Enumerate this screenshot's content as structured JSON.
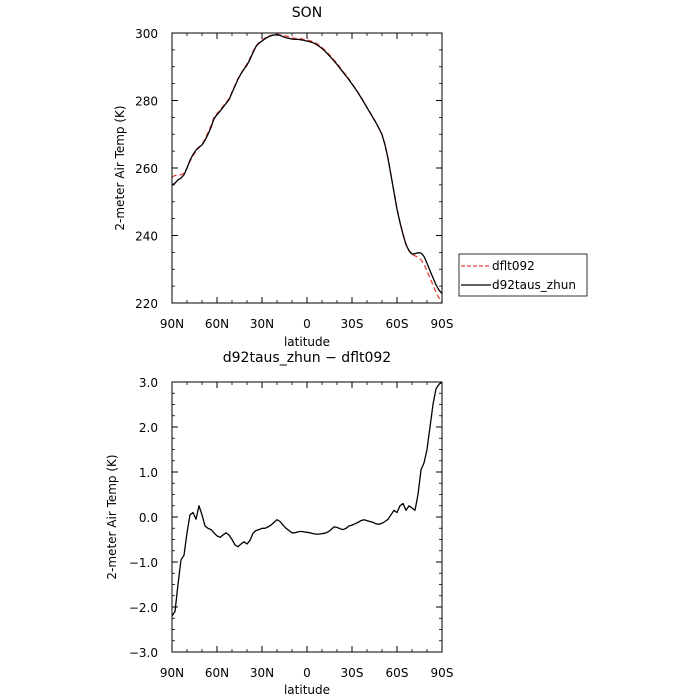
{
  "chart_data": [
    {
      "type": "line",
      "title": "SON",
      "xlabel": "latitude",
      "ylabel": "2-meter Air Temp (K)",
      "xlim": [
        90,
        -90
      ],
      "ylim": [
        220,
        300
      ],
      "x_ticks": [
        90,
        60,
        30,
        0,
        -30,
        -60,
        -90
      ],
      "x_tick_labels": [
        "90N",
        "60N",
        "30N",
        "0",
        "30S",
        "60S",
        "90S"
      ],
      "y_ticks": [
        220,
        240,
        260,
        280,
        300
      ],
      "y_tick_labels": [
        "220",
        "240",
        "260",
        "280",
        "300"
      ],
      "legend_position": "right",
      "series": [
        {
          "name": "dflt092",
          "color": "#e8413a",
          "style": "dashed",
          "x": [
            90,
            88,
            86,
            84,
            82,
            80,
            78,
            76,
            74,
            72,
            70,
            68,
            66,
            64,
            62,
            60,
            58,
            56,
            54,
            52,
            50,
            48,
            46,
            44,
            42,
            40,
            38,
            36,
            34,
            32,
            30,
            28,
            26,
            24,
            22,
            20,
            18,
            16,
            14,
            12,
            10,
            8,
            6,
            4,
            2,
            0,
            -2,
            -4,
            -6,
            -8,
            -10,
            -12,
            -14,
            -16,
            -18,
            -20,
            -22,
            -24,
            -26,
            -28,
            -30,
            -32,
            -34,
            -36,
            -38,
            -40,
            -42,
            -44,
            -46,
            -48,
            -50,
            -52,
            -54,
            -56,
            -58,
            -60,
            -62,
            -64,
            -66,
            -68,
            -70,
            -72,
            -74,
            -76,
            -78,
            -80,
            -82,
            -84,
            -86,
            -88,
            -90
          ],
          "y": [
            257.3,
            257.8,
            257.9,
            258,
            258.5,
            260,
            262,
            263.6,
            265,
            266,
            267,
            268.6,
            270.5,
            272.5,
            275,
            276.1,
            277.1,
            278.3,
            279.4,
            280.5,
            282.5,
            284.5,
            286.5,
            288,
            289.5,
            290.8,
            292.5,
            294.5,
            296.2,
            297.2,
            297.8,
            298.5,
            299,
            299.3,
            299.5,
            299.6,
            299.5,
            299.3,
            299.1,
            298.9,
            298.6,
            298.4,
            298.4,
            298.3,
            298.1,
            297.9,
            297.7,
            297.4,
            297,
            296.4,
            295.7,
            294.9,
            294,
            293,
            292,
            291,
            289.8,
            288.6,
            287.5,
            286.3,
            285,
            283.7,
            282.4,
            281,
            279.5,
            278,
            276.5,
            275,
            273.5,
            271.8,
            270,
            267,
            263,
            258,
            253,
            248,
            244,
            240.5,
            237.5,
            235.5,
            234.3,
            234,
            233.5,
            232.8,
            231.5,
            229.5,
            227.4,
            225.3,
            223.2,
            221.5,
            220
          ]
        },
        {
          "name": "d92taus_zhun",
          "color": "#000000",
          "style": "solid",
          "x": [
            90,
            88,
            86,
            84,
            82,
            80,
            78,
            76,
            74,
            72,
            70,
            68,
            66,
            64,
            62,
            60,
            58,
            56,
            54,
            52,
            50,
            48,
            46,
            44,
            42,
            40,
            38,
            36,
            34,
            32,
            30,
            28,
            26,
            24,
            22,
            20,
            18,
            16,
            14,
            12,
            10,
            8,
            6,
            4,
            2,
            0,
            -2,
            -4,
            -6,
            -8,
            -10,
            -12,
            -14,
            -16,
            -18,
            -20,
            -22,
            -24,
            -26,
            -28,
            -30,
            -32,
            -34,
            -36,
            -38,
            -40,
            -42,
            -44,
            -46,
            -48,
            -50,
            -52,
            -54,
            -56,
            -58,
            -60,
            -62,
            -64,
            -66,
            -68,
            -70,
            -72,
            -74,
            -76,
            -78,
            -80,
            -82,
            -84,
            -86,
            -88,
            -90
          ],
          "y": [
            255,
            255.5,
            256.5,
            257,
            258,
            260,
            262.3,
            264,
            265.3,
            266.2,
            266.8,
            268.2,
            270,
            272,
            274.6,
            275.8,
            276.8,
            278,
            279.1,
            280.2,
            282.3,
            284.3,
            286.3,
            287.9,
            289.3,
            290.5,
            292.2,
            294.2,
            296,
            297,
            297.6,
            298.3,
            298.8,
            299.2,
            299.4,
            299.5,
            299.3,
            298.9,
            298.6,
            298.4,
            298.2,
            298.1,
            298.1,
            298,
            297.8,
            297.6,
            297.4,
            297.1,
            296.7,
            296.1,
            295.4,
            294.6,
            293.7,
            292.7,
            291.7,
            290.7,
            289.5,
            288.4,
            287.3,
            286.1,
            284.9,
            283.6,
            282.3,
            280.9,
            279.4,
            277.9,
            276.4,
            274.9,
            273.4,
            271.7,
            269.9,
            266.8,
            262.8,
            257.8,
            252.8,
            247.8,
            243.8,
            240.3,
            237.3,
            235.5,
            234.5,
            234.6,
            234.9,
            234.8,
            233.8,
            231.8,
            229.6,
            227.5,
            225.4,
            223.8,
            222.8
          ]
        }
      ]
    },
    {
      "type": "line",
      "title": "d92taus_zhun − dflt092",
      "xlabel": "latitude",
      "ylabel": "2-meter Air Temp (K)",
      "xlim": [
        90,
        -90
      ],
      "ylim": [
        -3,
        3
      ],
      "x_ticks": [
        90,
        60,
        30,
        0,
        -30,
        -60,
        -90
      ],
      "x_tick_labels": [
        "90N",
        "60N",
        "30N",
        "0",
        "30S",
        "60S",
        "90S"
      ],
      "y_ticks": [
        -3,
        -2,
        -1,
        0,
        1,
        2,
        3
      ],
      "y_tick_labels": [
        "−3.0",
        "−2.0",
        "−1.0",
        "0.0",
        "1.0",
        "2.0",
        "3.0"
      ],
      "series": [
        {
          "name": "",
          "color": "#000000",
          "style": "solid",
          "x": [
            90,
            88,
            86,
            84,
            82,
            80,
            78,
            76,
            74,
            72,
            70,
            68,
            66,
            64,
            62,
            60,
            58,
            56,
            54,
            52,
            50,
            48,
            46,
            44,
            42,
            40,
            38,
            36,
            34,
            32,
            30,
            28,
            26,
            24,
            22,
            20,
            18,
            16,
            14,
            12,
            10,
            8,
            6,
            4,
            2,
            0,
            -2,
            -4,
            -6,
            -8,
            -10,
            -12,
            -14,
            -16,
            -18,
            -20,
            -22,
            -24,
            -26,
            -28,
            -30,
            -32,
            -34,
            -36,
            -38,
            -40,
            -42,
            -44,
            -46,
            -48,
            -50,
            -52,
            -54,
            -56,
            -58,
            -60,
            -62,
            -64,
            -66,
            -68,
            -70,
            -72,
            -74,
            -76,
            -78,
            -80,
            -82,
            -84,
            -86,
            -88,
            -90
          ],
          "y": [
            -2.2,
            -2.1,
            -1.5,
            -0.95,
            -0.85,
            -0.35,
            0.05,
            0.1,
            -0.05,
            0.25,
            0.05,
            -0.2,
            -0.25,
            -0.28,
            -0.35,
            -0.42,
            -0.45,
            -0.4,
            -0.35,
            -0.4,
            -0.5,
            -0.62,
            -0.66,
            -0.6,
            -0.55,
            -0.6,
            -0.52,
            -0.36,
            -0.3,
            -0.28,
            -0.25,
            -0.25,
            -0.22,
            -0.18,
            -0.12,
            -0.06,
            -0.1,
            -0.18,
            -0.25,
            -0.3,
            -0.35,
            -0.35,
            -0.33,
            -0.32,
            -0.33,
            -0.34,
            -0.35,
            -0.37,
            -0.38,
            -0.38,
            -0.37,
            -0.36,
            -0.33,
            -0.28,
            -0.22,
            -0.23,
            -0.26,
            -0.28,
            -0.25,
            -0.2,
            -0.18,
            -0.15,
            -0.12,
            -0.08,
            -0.06,
            -0.08,
            -0.1,
            -0.12,
            -0.15,
            -0.16,
            -0.14,
            -0.1,
            -0.05,
            0.05,
            0.15,
            0.1,
            0.25,
            0.3,
            0.15,
            0.25,
            0.2,
            0.15,
            0.5,
            1.05,
            1.2,
            1.5,
            2.0,
            2.5,
            2.85,
            2.95,
            3.0
          ]
        }
      ]
    }
  ]
}
